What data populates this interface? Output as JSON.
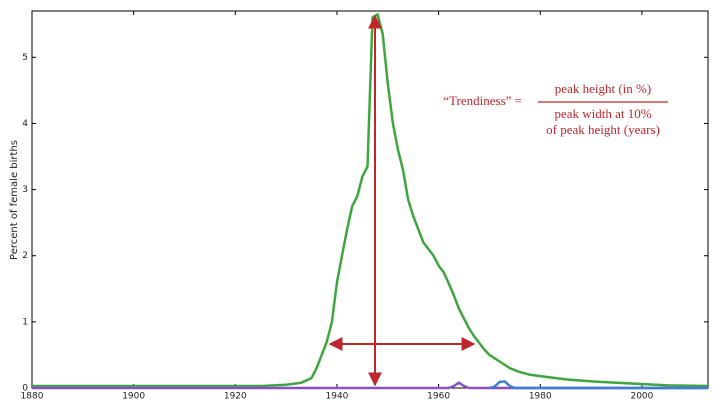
{
  "chart_data": {
    "type": "line",
    "ylabel": "Percent of female births",
    "xlim": [
      1880,
      2013
    ],
    "ylim": [
      0,
      5.7
    ],
    "xticks": [
      1880,
      1900,
      1920,
      1940,
      1960,
      1980,
      2000
    ],
    "yticks": [
      0,
      1,
      2,
      3,
      4,
      5
    ],
    "series": [
      {
        "color": "#3fa63f",
        "x": [
          1880,
          1885,
          1890,
          1895,
          1900,
          1905,
          1910,
          1915,
          1920,
          1925,
          1930,
          1933,
          1935,
          1936,
          1937,
          1938,
          1939,
          1940,
          1941,
          1942,
          1943,
          1944,
          1945,
          1946,
          1947,
          1948,
          1949,
          1950,
          1951,
          1952,
          1953,
          1954,
          1955,
          1956,
          1957,
          1958,
          1959,
          1960,
          1961,
          1962,
          1963,
          1964,
          1965,
          1966,
          1967,
          1968,
          1969,
          1970,
          1972,
          1974,
          1976,
          1978,
          1980,
          1985,
          1990,
          1995,
          2000,
          2005,
          2013
        ],
        "values": [
          0.03,
          0.03,
          0.03,
          0.03,
          0.03,
          0.03,
          0.03,
          0.03,
          0.03,
          0.03,
          0.05,
          0.08,
          0.15,
          0.3,
          0.5,
          0.7,
          1.0,
          1.6,
          2.0,
          2.4,
          2.75,
          2.9,
          3.2,
          3.35,
          5.6,
          5.65,
          5.35,
          4.6,
          4.0,
          3.6,
          3.3,
          2.85,
          2.6,
          2.4,
          2.2,
          2.1,
          2.0,
          1.85,
          1.75,
          1.58,
          1.4,
          1.2,
          1.05,
          0.9,
          0.78,
          0.68,
          0.58,
          0.5,
          0.4,
          0.3,
          0.24,
          0.2,
          0.18,
          0.13,
          0.1,
          0.08,
          0.06,
          0.04,
          0.03
        ]
      },
      {
        "color": "#8a4fc6",
        "x": [
          1880,
          1962,
          1963,
          1964,
          1965,
          1966,
          2013
        ],
        "values": [
          0,
          0,
          0.03,
          0.08,
          0.03,
          0,
          0
        ]
      },
      {
        "color": "#3a7fd5",
        "x": [
          1970,
          1971,
          1972,
          1973,
          1974,
          1975,
          2013
        ],
        "values": [
          0,
          0.02,
          0.09,
          0.1,
          0.03,
          0,
          0
        ]
      }
    ],
    "annotation": {
      "lhs": "“Trendiness” =",
      "numerator": "peak height (in %)",
      "denominator_1": "peak width at 10%",
      "denominator_2": "of peak height (years)"
    }
  }
}
